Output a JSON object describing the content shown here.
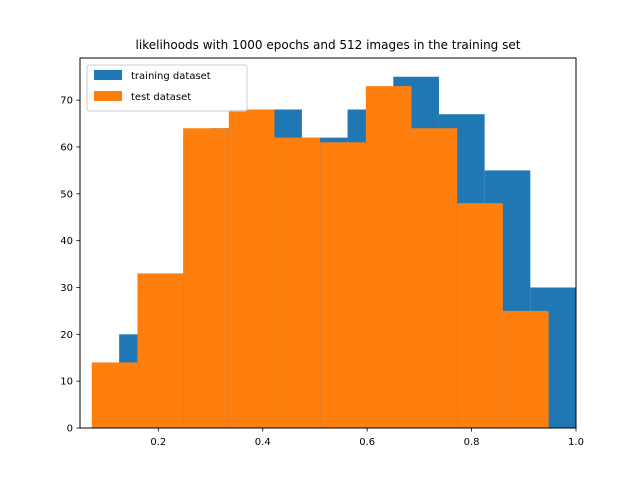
{
  "chart_data": {
    "type": "bar",
    "title": "likelihoods with 1000 epochs and 512 images in the training set",
    "xlabel": "",
    "ylabel": "",
    "xlim": [
      0.05,
      1.0
    ],
    "ylim": [
      0,
      79
    ],
    "xticks": [
      0.2,
      0.4,
      0.6,
      0.8,
      1.0
    ],
    "xtick_labels": [
      "0.2",
      "0.4",
      "0.6",
      "0.8",
      "1.0"
    ],
    "yticks": [
      0,
      10,
      20,
      30,
      40,
      50,
      60,
      70
    ],
    "ytick_labels": [
      "0",
      "10",
      "20",
      "30",
      "40",
      "50",
      "60",
      "70"
    ],
    "grid": false,
    "legend_position": "top-left",
    "series": [
      {
        "name": "training dataset",
        "color": "#1f77b4",
        "bin_edges": [
          0.125,
          0.2125,
          0.3,
          0.3875,
          0.475,
          0.5625,
          0.65,
          0.7375,
          0.825,
          0.9125,
          1.0
        ],
        "values": [
          20,
          33,
          64,
          68,
          62,
          68,
          75,
          67,
          55,
          30
        ]
      },
      {
        "name": "test dataset",
        "color": "#ff7f0e",
        "bin_edges": [
          0.0725,
          0.16,
          0.2475,
          0.335,
          0.4225,
          0.51,
          0.5975,
          0.685,
          0.7725,
          0.86,
          0.9475
        ],
        "values": [
          14,
          33,
          64,
          68,
          62,
          61,
          73,
          64,
          48,
          25
        ]
      }
    ]
  }
}
